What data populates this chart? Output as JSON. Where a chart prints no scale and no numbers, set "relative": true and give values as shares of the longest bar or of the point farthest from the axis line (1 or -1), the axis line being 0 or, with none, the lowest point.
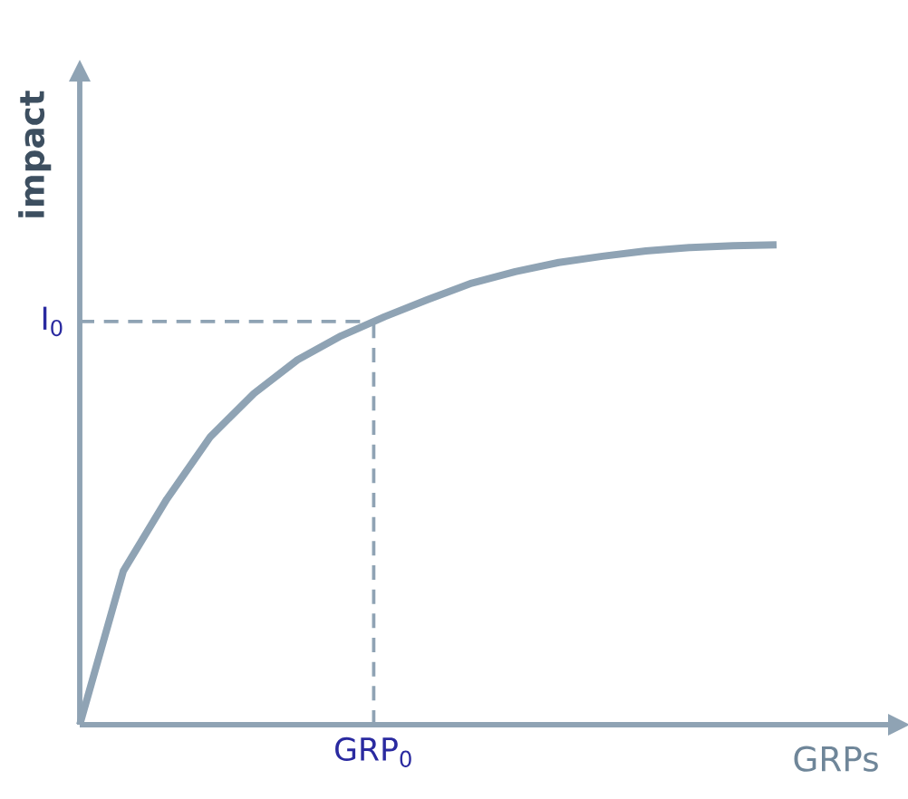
{
  "chart_data": {
    "type": "line",
    "xlabel": "GRPs",
    "ylabel": "impact",
    "relative": true,
    "categories": [
      null,
      null,
      null,
      null,
      null,
      null,
      null,
      null,
      null,
      null,
      null,
      null,
      null,
      null,
      null,
      null,
      null
    ],
    "series": [
      {
        "color": "#8fa3b4",
        "values": [
          0,
          0.32,
          0.47,
          0.6,
          0.69,
          0.76,
          0.81,
          0.85,
          0.886,
          0.92,
          0.944,
          0.963,
          0.976,
          0.987,
          0.994,
          0.998,
          1
        ]
      }
    ],
    "ref_lines": [
      {
        "axis": "y",
        "value": 0.84,
        "label": "I$_{0}$",
        "color": "#8fa3b4",
        "line_style": "dashed"
      }
    ],
    "annotations": [
      "GRP$_{0}$"
    ],
    "line_style": "solid"
  }
}
